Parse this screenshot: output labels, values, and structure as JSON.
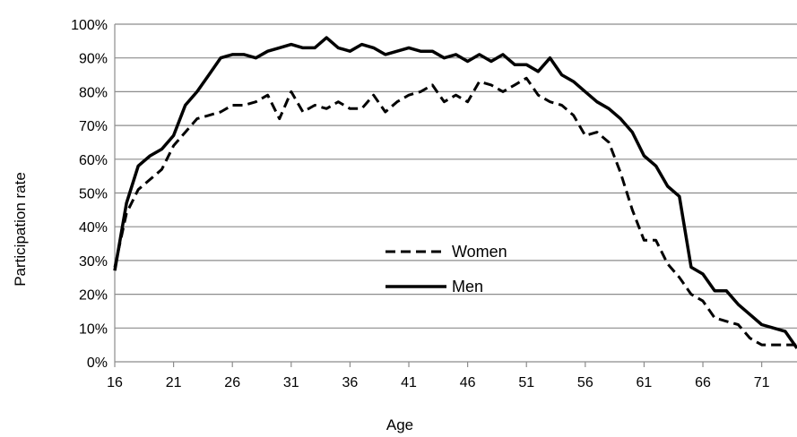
{
  "chart_data": {
    "type": "line",
    "title": "",
    "xlabel": "Age",
    "ylabel": "Participation rate",
    "xlim": [
      16,
      74
    ],
    "ylim": [
      0,
      100
    ],
    "x_ticks": [
      16,
      21,
      26,
      31,
      36,
      41,
      46,
      51,
      56,
      61,
      66,
      71
    ],
    "x_tick_labels": [
      "16",
      "21",
      "26",
      "31",
      "36",
      "41",
      "46",
      "51",
      "56",
      "61",
      "66",
      "71"
    ],
    "y_ticks": [
      0,
      10,
      20,
      30,
      40,
      50,
      60,
      70,
      80,
      90,
      100
    ],
    "y_tick_labels": [
      "0%",
      "10%",
      "20%",
      "30%",
      "40%",
      "50%",
      "60%",
      "70%",
      "80%",
      "90%",
      "100%"
    ],
    "grid": "horizontal",
    "legend_position": "center",
    "x": [
      16,
      17,
      18,
      19,
      20,
      21,
      22,
      23,
      24,
      25,
      26,
      27,
      28,
      29,
      30,
      31,
      32,
      33,
      34,
      35,
      36,
      37,
      38,
      39,
      40,
      41,
      42,
      43,
      44,
      45,
      46,
      47,
      48,
      49,
      50,
      51,
      52,
      53,
      54,
      55,
      56,
      57,
      58,
      59,
      60,
      61,
      62,
      63,
      64,
      65,
      66,
      67,
      68,
      69,
      70,
      71,
      72,
      73,
      74
    ],
    "series": [
      {
        "name": "Women",
        "style": "dashed",
        "color": "#000000",
        "values": [
          28,
          44,
          51,
          54,
          57,
          64,
          68,
          72,
          73,
          74,
          76,
          76,
          77,
          79,
          72,
          80,
          74,
          76,
          75,
          77,
          75,
          75,
          79,
          74,
          77,
          79,
          80,
          82,
          77,
          79,
          77,
          83,
          82,
          80,
          82,
          84,
          79,
          77,
          76,
          73,
          67,
          68,
          65,
          56,
          45,
          36,
          36,
          29,
          25,
          20,
          18,
          13,
          12,
          11,
          7,
          5,
          5,
          5,
          5
        ]
      },
      {
        "name": "Men",
        "style": "solid",
        "color": "#000000",
        "values": [
          27,
          47,
          58,
          61,
          63,
          67,
          76,
          80,
          85,
          90,
          91,
          91,
          90,
          92,
          93,
          94,
          93,
          93,
          96,
          93,
          92,
          94,
          93,
          91,
          92,
          93,
          92,
          92,
          90,
          91,
          89,
          91,
          89,
          91,
          88,
          88,
          86,
          90,
          85,
          83,
          80,
          77,
          75,
          72,
          68,
          61,
          58,
          52,
          49,
          28,
          26,
          21,
          21,
          17,
          14,
          11,
          10,
          9,
          4
        ]
      }
    ]
  }
}
